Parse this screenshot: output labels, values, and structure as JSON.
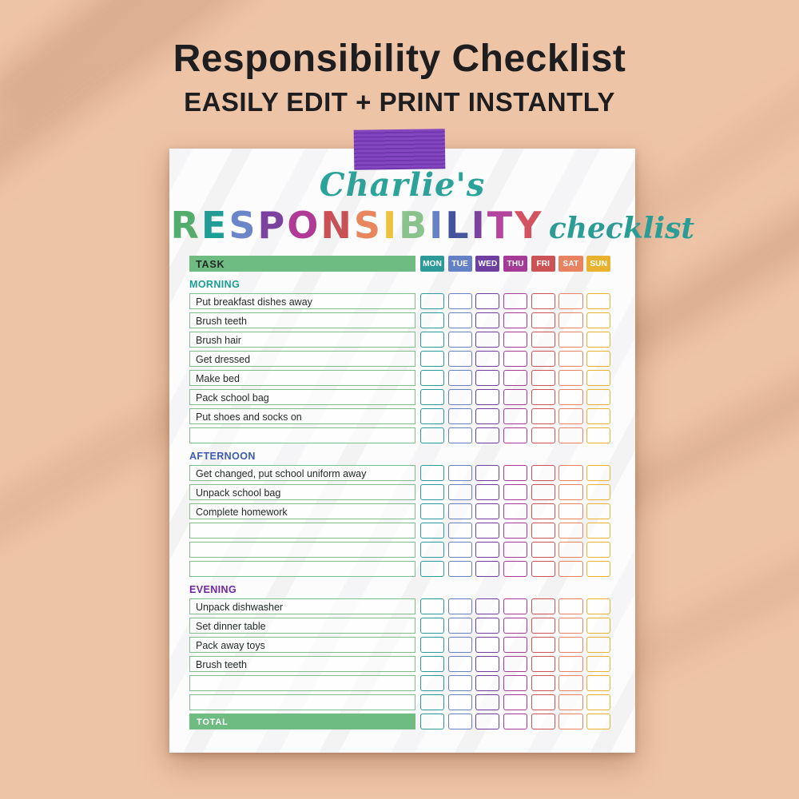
{
  "hero": {
    "title": "Responsibility Checklist",
    "subtitle": "EASILY EDIT + PRINT INSTANTLY"
  },
  "paper": {
    "owner_name": "Charlie's",
    "tape_color": "#7d3cbe",
    "owner_color": "#2aa39b",
    "title_letters": [
      {
        "ch": "R",
        "color": "#53ae6d"
      },
      {
        "ch": "E",
        "color": "#1d9e96"
      },
      {
        "ch": "S",
        "color": "#6b85c9"
      },
      {
        "ch": "P",
        "color": "#7b3fa0"
      },
      {
        "ch": "O",
        "color": "#b13a96"
      },
      {
        "ch": "N",
        "color": "#cc4f55"
      },
      {
        "ch": "S",
        "color": "#e8875e"
      },
      {
        "ch": "I",
        "color": "#edc23c"
      },
      {
        "ch": "B",
        "color": "#8bc68f"
      },
      {
        "ch": "I",
        "color": "#6781c6"
      },
      {
        "ch": "L",
        "color": "#44539e"
      },
      {
        "ch": "I",
        "color": "#7b3fa0"
      },
      {
        "ch": "T",
        "color": "#b5449e"
      },
      {
        "ch": "Y",
        "color": "#d35460"
      }
    ],
    "title_script": "checklist",
    "title_script_color": "#2a9e96"
  },
  "table": {
    "task_header": "TASK",
    "total_label": "TOTAL",
    "header_bar_color": "#6fbc83",
    "task_cell_border_color": "#7fbd8e",
    "days": [
      {
        "label": "MON",
        "color": "#2b9a99"
      },
      {
        "label": "TUE",
        "color": "#6581c5"
      },
      {
        "label": "WED",
        "color": "#6e3fa0"
      },
      {
        "label": "THU",
        "color": "#a53a97"
      },
      {
        "label": "FRI",
        "color": "#cb5356"
      },
      {
        "label": "SAT",
        "color": "#e98260"
      },
      {
        "label": "SUN",
        "color": "#e8b22e"
      }
    ],
    "sections": [
      {
        "label": "MORNING",
        "color": "#1a9e92",
        "rows": [
          "Put breakfast dishes away",
          "Brush teeth",
          "Brush hair",
          "Get dressed",
          "Make bed",
          "Pack school bag",
          "Put shoes and socks on",
          ""
        ]
      },
      {
        "label": "AFTERNOON",
        "color": "#3b5bb5",
        "rows": [
          "Get changed, put school uniform away",
          "Unpack school bag",
          "Complete homework",
          "",
          "",
          ""
        ]
      },
      {
        "label": "EVENING",
        "color": "#7227a0",
        "rows": [
          "Unpack dishwasher",
          "Set dinner table",
          "Pack away toys",
          "Brush teeth",
          "",
          ""
        ]
      }
    ]
  }
}
